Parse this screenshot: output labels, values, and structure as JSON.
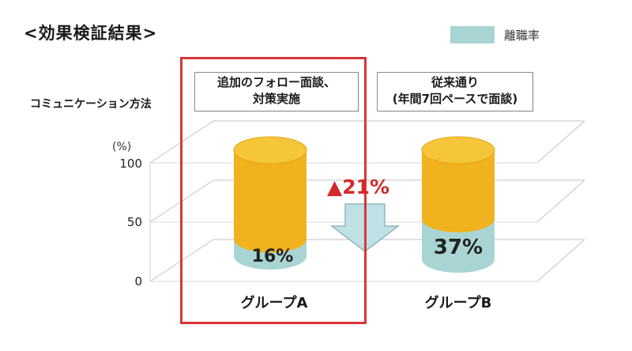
{
  "title": "<効果検証結果>",
  "legend": {
    "label": "離職率",
    "color": "#a8d4d4"
  },
  "method_label": "コミュニケーション方法",
  "unit_label": "(%)",
  "groups": [
    {
      "name": "グループA",
      "method_lines": [
        "追加のフォロー面談、",
        "対策実施"
      ]
    },
    {
      "name": "グループB",
      "method_lines": [
        "従来通り",
        "(年間7回ペースで面談)"
      ]
    }
  ],
  "change_label": "▲21%",
  "colors": {
    "turnover": "#a8d4d4",
    "rest": "#f0b21e",
    "highlight": "#d9363a"
  },
  "chart_data": {
    "type": "bar",
    "categories": [
      "グループA",
      "グループB"
    ],
    "series": [
      {
        "name": "離職率",
        "values": [
          16,
          37
        ]
      }
    ],
    "data_labels": [
      "16%",
      "37%"
    ],
    "y_ticks": [
      "0",
      "50",
      "100"
    ],
    "ylim": [
      0,
      100
    ],
    "annotation": "▲21%"
  }
}
